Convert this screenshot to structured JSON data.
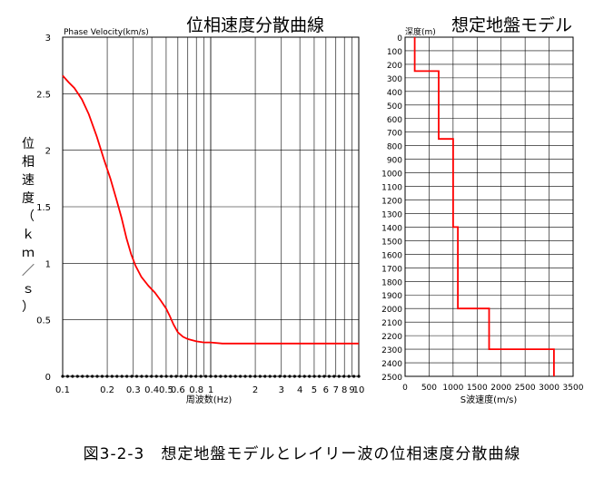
{
  "caption": "図3-2-3　想定地盤モデルとレイリー波の位相速度分散曲線",
  "chart_data": [
    {
      "type": "line",
      "title": "位相速度分散曲線",
      "corner_label": "Phase Velocity(km/s)",
      "xlabel": "周波数(Hz)",
      "ylabel_chars": [
        "位",
        "相",
        "速",
        "度",
        "（",
        "ｋ",
        "ｍ",
        "／",
        "ｓ",
        "）"
      ],
      "xscale": "log",
      "xlim": [
        0.1,
        10
      ],
      "ylim": [
        0,
        3
      ],
      "x_ticks": [
        0.1,
        0.2,
        0.3,
        0.4,
        0.5,
        0.6,
        0.8,
        1,
        2,
        3,
        4,
        5,
        6,
        7,
        8,
        9,
        10
      ],
      "x_tick_labels": [
        "0.1",
        "0.2",
        "0.3",
        "0.4",
        "0.5",
        "0.6",
        "0.8",
        "1",
        "2",
        "3",
        "4",
        "5",
        "6",
        "7",
        "8",
        "9",
        "10"
      ],
      "y_ticks": [
        0,
        0.5,
        1,
        1.5,
        2,
        2.5,
        3
      ],
      "y_tick_labels": [
        "0",
        "0.5",
        "1",
        "1.5",
        "2",
        "2.5",
        "3"
      ],
      "grid": true,
      "line_color": "#ff0000",
      "series": [
        {
          "x": [
            0.1,
            0.11,
            0.12,
            0.135,
            0.15,
            0.17,
            0.19,
            0.21,
            0.23,
            0.25,
            0.27,
            0.29,
            0.31,
            0.34,
            0.38,
            0.42,
            0.46,
            0.5,
            0.53,
            0.56,
            0.6,
            0.65,
            0.7,
            0.8,
            0.9,
            1.0,
            1.2,
            1.5,
            2,
            3,
            5,
            10
          ],
          "y": [
            2.66,
            2.6,
            2.55,
            2.45,
            2.32,
            2.12,
            1.92,
            1.75,
            1.57,
            1.4,
            1.22,
            1.08,
            0.98,
            0.88,
            0.8,
            0.74,
            0.67,
            0.6,
            0.53,
            0.46,
            0.39,
            0.35,
            0.33,
            0.31,
            0.3,
            0.3,
            0.29,
            0.29,
            0.29,
            0.29,
            0.29,
            0.29
          ]
        }
      ]
    },
    {
      "type": "line",
      "title": "想定地盤モデル",
      "corner_label": "深度(m)",
      "xlabel": "S波速度(m/s)",
      "xlim": [
        0,
        3500
      ],
      "ylim": [
        0,
        2500
      ],
      "y_inverted": true,
      "x_ticks": [
        0,
        500,
        1000,
        1500,
        2000,
        2500,
        3000,
        3500
      ],
      "x_tick_labels": [
        "0",
        "500",
        "1000",
        "1500",
        "2000",
        "2500",
        "3000",
        "3500"
      ],
      "y_tick_labels": [
        "0",
        "100",
        "200",
        "300",
        "400",
        "500",
        "600",
        "700",
        "800",
        "900",
        "1000",
        "1100",
        "1200",
        "1300",
        "1400",
        "1500",
        "1600",
        "1700",
        "1800",
        "1900",
        "2000",
        "2100",
        "2200",
        "2300",
        "2400",
        "2500"
      ],
      "grid": true,
      "line_color": "#ff0000",
      "layers": [
        {
          "vs": 200,
          "top": 0,
          "bottom": 250
        },
        {
          "vs": 700,
          "top": 250,
          "bottom": 750
        },
        {
          "vs": 1000,
          "top": 750,
          "bottom": 1400
        },
        {
          "vs": 1100,
          "top": 1400,
          "bottom": 2000
        },
        {
          "vs": 1750,
          "top": 2000,
          "bottom": 2300
        },
        {
          "vs": 3100,
          "top": 2300,
          "bottom": 2500
        }
      ]
    }
  ]
}
